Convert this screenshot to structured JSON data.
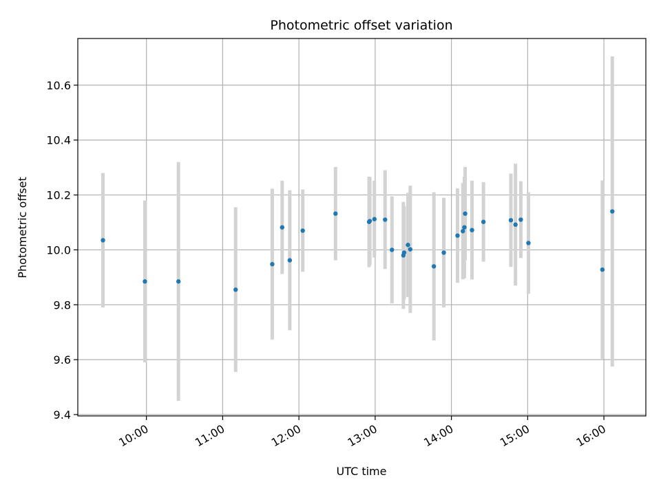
{
  "chart_data": {
    "type": "scatter",
    "title": "Photometric offset variation",
    "xlabel": "UTC time",
    "ylabel": "Photometric offset",
    "x_unit": "hours UTC",
    "xlim": [
      9.1,
      16.55
    ],
    "ylim": [
      9.395,
      10.77
    ],
    "x_ticks": [
      {
        "value": 10,
        "label": "10:00"
      },
      {
        "value": 11,
        "label": "11:00"
      },
      {
        "value": 12,
        "label": "12:00"
      },
      {
        "value": 13,
        "label": "13:00"
      },
      {
        "value": 14,
        "label": "14:00"
      },
      {
        "value": 15,
        "label": "15:00"
      },
      {
        "value": 16,
        "label": "16:00"
      }
    ],
    "y_ticks": [
      {
        "value": 9.4,
        "label": "9.4"
      },
      {
        "value": 9.6,
        "label": "9.6"
      },
      {
        "value": 9.8,
        "label": "9.8"
      },
      {
        "value": 10.0,
        "label": "10.0"
      },
      {
        "value": 10.2,
        "label": "10.2"
      },
      {
        "value": 10.4,
        "label": "10.4"
      },
      {
        "value": 10.6,
        "label": "10.6"
      }
    ],
    "grid": true,
    "marker_color": "#1f77b4",
    "errorbar_color": "#d3d3d3",
    "points": [
      {
        "x": 9.43,
        "y": 10.035,
        "err": 0.245
      },
      {
        "x": 9.98,
        "y": 9.885,
        "err": 0.295
      },
      {
        "x": 10.42,
        "y": 9.885,
        "err": 0.435
      },
      {
        "x": 11.17,
        "y": 9.855,
        "err": 0.3
      },
      {
        "x": 11.65,
        "y": 9.948,
        "err": 0.275
      },
      {
        "x": 11.78,
        "y": 10.082,
        "err": 0.17
      },
      {
        "x": 11.88,
        "y": 9.962,
        "err": 0.255
      },
      {
        "x": 12.05,
        "y": 10.07,
        "err": 0.15
      },
      {
        "x": 12.48,
        "y": 10.132,
        "err": 0.17
      },
      {
        "x": 12.92,
        "y": 10.102,
        "err": 0.165
      },
      {
        "x": 12.93,
        "y": 10.105,
        "err": 0.16
      },
      {
        "x": 12.99,
        "y": 10.112,
        "err": 0.14
      },
      {
        "x": 13.13,
        "y": 10.11,
        "err": 0.18
      },
      {
        "x": 13.22,
        "y": 10.0,
        "err": 0.195
      },
      {
        "x": 13.37,
        "y": 9.98,
        "err": 0.195
      },
      {
        "x": 13.38,
        "y": 9.99,
        "err": 0.17
      },
      {
        "x": 13.43,
        "y": 10.018,
        "err": 0.19
      },
      {
        "x": 13.46,
        "y": 10.002,
        "err": 0.232
      },
      {
        "x": 13.77,
        "y": 9.94,
        "err": 0.27
      },
      {
        "x": 13.9,
        "y": 9.99,
        "err": 0.2
      },
      {
        "x": 14.08,
        "y": 10.052,
        "err": 0.172
      },
      {
        "x": 14.15,
        "y": 10.068,
        "err": 0.175
      },
      {
        "x": 14.17,
        "y": 10.082,
        "err": 0.185
      },
      {
        "x": 14.18,
        "y": 10.132,
        "err": 0.17
      },
      {
        "x": 14.27,
        "y": 10.072,
        "err": 0.18
      },
      {
        "x": 14.42,
        "y": 10.102,
        "err": 0.145
      },
      {
        "x": 14.78,
        "y": 10.108,
        "err": 0.17
      },
      {
        "x": 14.84,
        "y": 10.092,
        "err": 0.222
      },
      {
        "x": 14.91,
        "y": 10.11,
        "err": 0.14
      },
      {
        "x": 15.01,
        "y": 10.025,
        "err": 0.185
      },
      {
        "x": 15.98,
        "y": 9.928,
        "err": 0.325
      },
      {
        "x": 16.11,
        "y": 10.14,
        "err": 0.565
      }
    ]
  }
}
